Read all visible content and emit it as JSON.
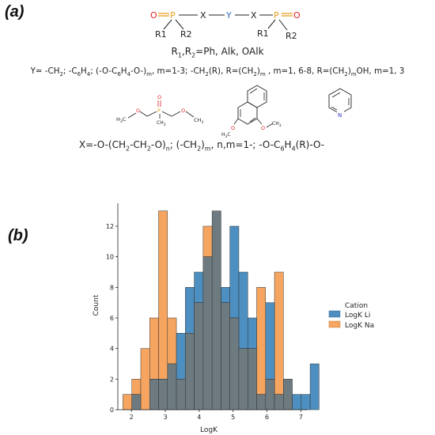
{
  "panel_a": {
    "label": "(a)",
    "scheme": {
      "atom_o": "O",
      "atom_p": "P",
      "atom_x": "X",
      "atom_y": "Y",
      "sub_r1": "R1",
      "sub_r2": "R2"
    },
    "r_line": {
      "r1": "R",
      "sub1": "1",
      "sep": ",R",
      "sub2": "2",
      "rest": "=Ph, Alk, OAlk"
    },
    "y_line": {
      "t1": "Y= -CH",
      "s1": "2",
      "t2": "; -C",
      "s2": "6",
      "t3": "H",
      "s3": "4",
      "t4": "; (-O-C",
      "s4": "6",
      "t5": "H",
      "s5": "4",
      "t6": "-O-)",
      "s6": "m",
      "t7": ", m=1-3; -CH",
      "s7": "2",
      "t8": "(R), R=(CH",
      "s8": "2",
      "t9": ")",
      "s9": "m",
      "t10": " , m=1, 6-8, R=(CH",
      "s10": "2",
      "t11": ")",
      "s11": "m",
      "t12": "OH, m=1, 3"
    },
    "ligand1": {
      "h3c": "H",
      "h3c_sub": "3",
      "h3c_c": "C",
      "o1": "O",
      "p": "P",
      "o_dbl": "O",
      "ch3": "CH",
      "ch3_sub": "3",
      "o2": "O",
      "ch3b": "CH",
      "ch3b_sub": "3"
    },
    "ligand2": {
      "h3c": "H",
      "h3c_sub": "3",
      "h3c_c": "C",
      "o1": "O",
      "o2": "O",
      "ch3": "CH",
      "ch3_sub": "3"
    },
    "ligand3": {
      "n": "N"
    },
    "x_line": {
      "t1": "X=-O-(CH",
      "s1": "2",
      "t2": "-CH",
      "s2": "2",
      "t3": "-O)",
      "s3": "n",
      "t4": "; (-CH",
      "s4": "2",
      "t5": ")",
      "s5": "m",
      "t6": ", n,m=1-; -O-C",
      "s6": "6",
      "t7": "H",
      "s7": "4",
      "t8": "(R)-O-"
    }
  },
  "panel_b": {
    "label": "(b)"
  },
  "colors": {
    "li": "#4c8fc0",
    "na": "#f5a560",
    "overlap": "#6d7a80",
    "red": "#e02020",
    "orange": "#e8a020",
    "blue": "#3030c0"
  },
  "chart_data": {
    "type": "histogram",
    "xlabel": "LogK",
    "ylabel": "Count",
    "xticks": [
      "2",
      "3",
      "4",
      "5",
      "6",
      "7"
    ],
    "yticks": [
      "0",
      "2",
      "4",
      "6",
      "8",
      "10",
      "12"
    ],
    "xlim": [
      1.6,
      7.2
    ],
    "ylim": [
      0,
      13.5
    ],
    "bin_start": 1.75,
    "bin_width": 0.263,
    "legend": {
      "title": "Cation",
      "position": "right",
      "entries": [
        "LogK Li",
        "LogK Na"
      ]
    },
    "series": [
      {
        "name": "LogK Li",
        "values": [
          0,
          1,
          0,
          2,
          2,
          3,
          5,
          8,
          9,
          10,
          13,
          8,
          12,
          9,
          6,
          1,
          7,
          1,
          2,
          1,
          1,
          3
        ]
      },
      {
        "name": "LogK Na",
        "values": [
          1,
          2,
          4,
          6,
          13,
          6,
          2,
          5,
          7,
          12,
          13,
          7,
          6,
          4,
          4,
          8,
          2,
          9,
          2,
          0,
          0,
          0
        ]
      }
    ]
  }
}
